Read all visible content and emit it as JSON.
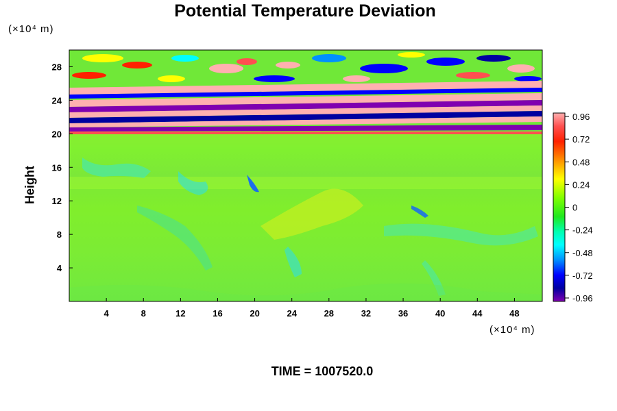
{
  "chart_data": {
    "type": "heatmap",
    "title": "Potential Temperature Deviation",
    "ylabel": "Height",
    "y_unit": "(×10⁴ m)",
    "x_unit": "(×10⁴ m)",
    "x_ticks": [
      4,
      8,
      12,
      16,
      20,
      24,
      28,
      32,
      36,
      40,
      44,
      48
    ],
    "y_ticks": [
      4,
      8,
      12,
      16,
      20,
      24,
      28
    ],
    "xlim": [
      0,
      51
    ],
    "ylim": [
      0,
      30
    ],
    "colorbar": {
      "ticks": [
        "0.96",
        "0.72",
        "0.48",
        "0.24",
        "0",
        "-0.24",
        "-0.48",
        "-0.72",
        "-0.96"
      ],
      "range": [
        -0.96,
        0.96
      ]
    },
    "time_label": "TIME = 1007520.0"
  }
}
